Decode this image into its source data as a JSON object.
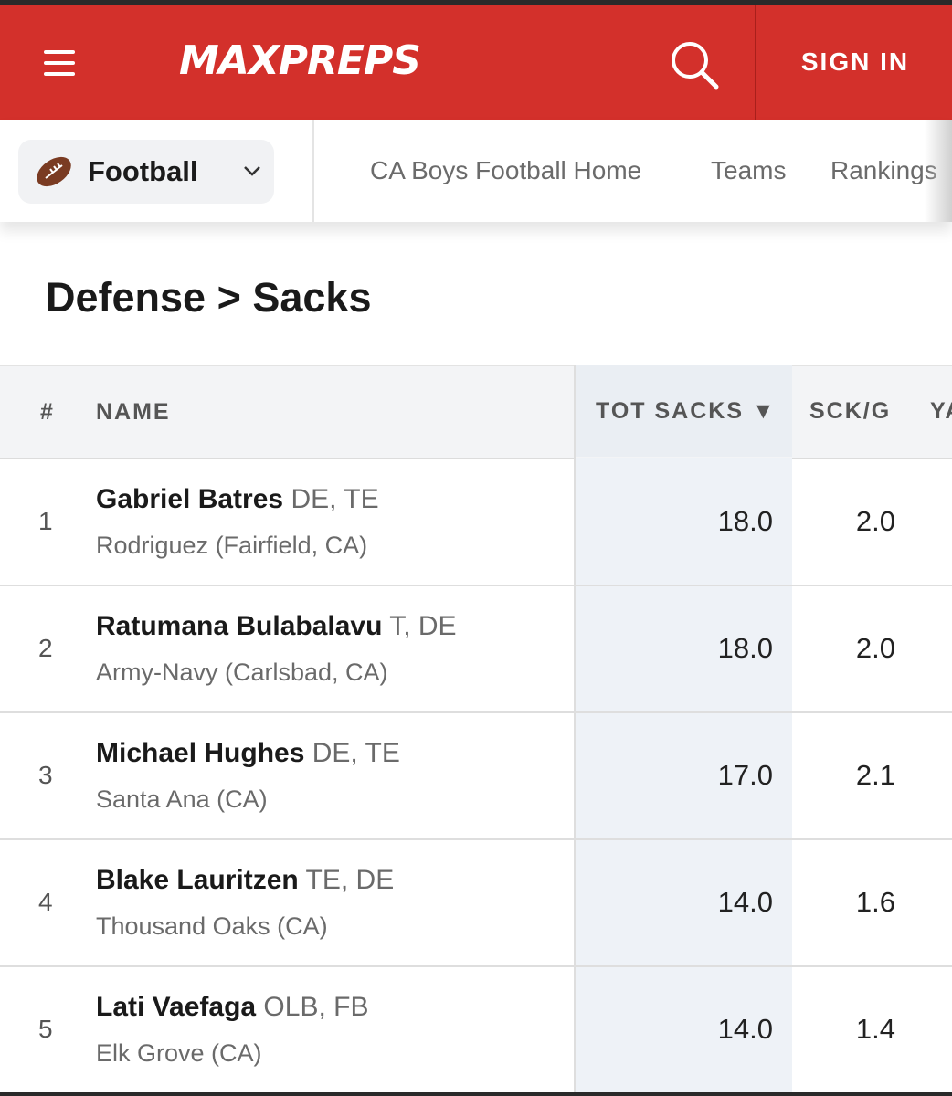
{
  "header": {
    "logo": "MAXPREPS",
    "sign_in": "SIGN IN",
    "colors": {
      "brand": "#d3302b"
    }
  },
  "subnav": {
    "sport": "Football",
    "links": [
      "CA Boys Football Home",
      "Teams",
      "Rankings"
    ]
  },
  "page": {
    "title": "Defense > Sacks"
  },
  "table": {
    "columns": {
      "rank": "#",
      "name": "NAME",
      "tot": "TOT SACKS ▼",
      "sckg": "SCK/G",
      "next": "YA"
    },
    "rows": [
      {
        "rank": "1",
        "name": "Gabriel Batres",
        "pos": "DE, TE",
        "school": "Rodriguez (Fairfield, CA)",
        "tot": "18.0",
        "sckg": "2.0"
      },
      {
        "rank": "2",
        "name": "Ratumana Bulabalavu",
        "pos": "T, DE",
        "school": "Army-Navy (Carlsbad, CA)",
        "tot": "18.0",
        "sckg": "2.0"
      },
      {
        "rank": "3",
        "name": "Michael Hughes",
        "pos": "DE, TE",
        "school": "Santa Ana (CA)",
        "tot": "17.0",
        "sckg": "2.1"
      },
      {
        "rank": "4",
        "name": "Blake Lauritzen",
        "pos": "TE, DE",
        "school": "Thousand Oaks (CA)",
        "tot": "14.0",
        "sckg": "1.6"
      },
      {
        "rank": "5",
        "name": "Lati Vaefaga",
        "pos": "OLB, FB",
        "school": "Elk Grove (CA)",
        "tot": "14.0",
        "sckg": "1.4"
      }
    ]
  }
}
